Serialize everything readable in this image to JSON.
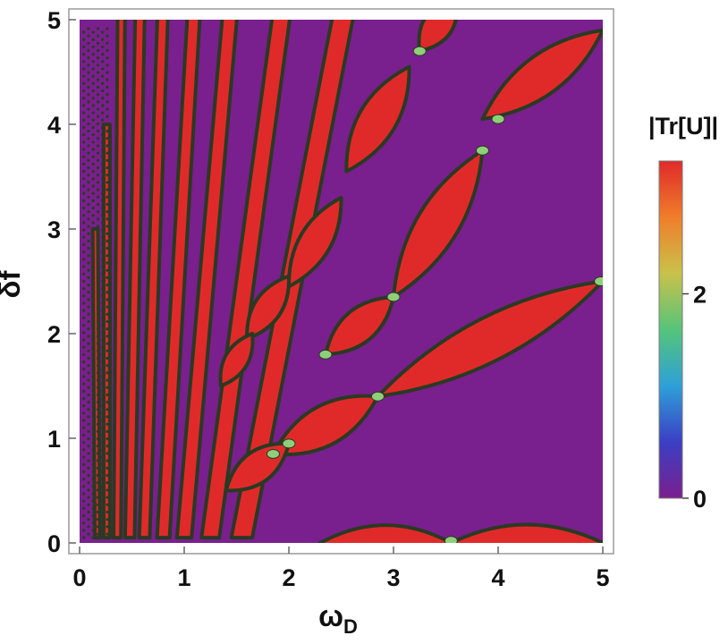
{
  "chart_data": {
    "type": "heatmap",
    "title": "",
    "xlabel": "ω",
    "xlabel_subscript": "D",
    "ylabel": "δf",
    "xlim": [
      0,
      5
    ],
    "ylim": [
      0,
      5
    ],
    "x_ticks": [
      "0",
      "1",
      "2",
      "3",
      "4",
      "5"
    ],
    "y_ticks": [
      "0",
      "1",
      "2",
      "3",
      "4",
      "5"
    ],
    "grid": false,
    "colorbar": {
      "title": "|Tr[U]|",
      "range": [
        0,
        3.3
      ],
      "ticks": [
        "0",
        "2"
      ],
      "tick_values": [
        0,
        2
      ],
      "colors": [
        "#7a1f8e",
        "#3b3fc4",
        "#2ea0d8",
        "#55c47a",
        "#c9c24a",
        "#ef7d2a",
        "#e02a2a"
      ]
    },
    "region_colors": {
      "low": "#7a1f8e",
      "high": "#e02a2a",
      "boundary": "#2a3a22",
      "crossing": "#8fcf7a"
    },
    "red_lobes": [
      {
        "x1": 2.3,
        "x2": 3.55,
        "y_at_x1": 0.0,
        "y_at_x2": 0.0,
        "h": 0.34
      },
      {
        "x1": 3.55,
        "x2": 5.0,
        "y_at_x1": 0.0,
        "y_at_x2": 0.0,
        "h": 0.35
      },
      {
        "x1": 2.85,
        "x2": 5.0,
        "y_at_x1": 1.4,
        "y_at_x2": 2.5,
        "h": 0.42
      },
      {
        "x1": 1.85,
        "x2": 2.85,
        "y_at_x1": 0.85,
        "y_at_x2": 1.4,
        "h": 0.38
      },
      {
        "x1": 1.4,
        "x2": 2.0,
        "y_at_x1": 0.5,
        "y_at_x2": 0.95,
        "h": 0.3
      },
      {
        "x1": 3.0,
        "x2": 3.85,
        "y_at_x1": 2.35,
        "y_at_x2": 3.75,
        "h": 0.4
      },
      {
        "x1": 2.35,
        "x2": 3.0,
        "y_at_x1": 1.8,
        "y_at_x2": 2.35,
        "h": 0.32
      },
      {
        "x1": 3.85,
        "x2": 5.0,
        "y_at_x1": 4.05,
        "y_at_x2": 4.9,
        "h": 0.38
      },
      {
        "x1": 2.55,
        "x2": 3.15,
        "y_at_x1": 3.55,
        "y_at_x2": 4.55,
        "h": 0.36
      },
      {
        "x1": 2.0,
        "x2": 2.5,
        "y_at_x1": 2.45,
        "y_at_x2": 3.3,
        "h": 0.3
      },
      {
        "x1": 3.25,
        "x2": 3.6,
        "y_at_x1": 4.7,
        "y_at_x2": 5.2,
        "h": 0.28
      },
      {
        "x1": 1.6,
        "x2": 2.0,
        "y_at_x1": 1.95,
        "y_at_x2": 2.55,
        "h": 0.26
      },
      {
        "x1": 1.35,
        "x2": 1.65,
        "y_at_x1": 1.5,
        "y_at_x2": 2.0,
        "h": 0.22
      }
    ],
    "red_bands": [
      {
        "x0": 1.55,
        "y0": 0.05,
        "x1": 2.55,
        "y1": 5.2,
        "w": 0.2
      },
      {
        "x0": 1.25,
        "y0": 0.05,
        "x1": 1.95,
        "y1": 5.2,
        "w": 0.17
      },
      {
        "x0": 1.0,
        "y0": 0.05,
        "x1": 1.45,
        "y1": 5.2,
        "w": 0.14
      },
      {
        "x0": 0.8,
        "y0": 0.05,
        "x1": 1.1,
        "y1": 5.2,
        "w": 0.12
      },
      {
        "x0": 0.62,
        "y0": 0.05,
        "x1": 0.8,
        "y1": 5.2,
        "w": 0.1
      },
      {
        "x0": 0.48,
        "y0": 0.05,
        "x1": 0.58,
        "y1": 5.2,
        "w": 0.09
      },
      {
        "x0": 0.36,
        "y0": 0.05,
        "x1": 0.4,
        "y1": 5.2,
        "w": 0.07
      },
      {
        "x0": 0.26,
        "y0": 0.05,
        "x1": 0.26,
        "y1": 4.0,
        "w": 0.06
      },
      {
        "x0": 0.17,
        "y0": 0.05,
        "x1": 0.15,
        "y1": 3.0,
        "w": 0.05
      }
    ],
    "crossings": [
      [
        3.55,
        0.02
      ],
      [
        2.85,
        1.4
      ],
      [
        4.98,
        2.5
      ],
      [
        3.85,
        3.75
      ],
      [
        4.0,
        4.05
      ],
      [
        3.0,
        2.35
      ],
      [
        2.35,
        1.8
      ],
      [
        3.25,
        4.7
      ],
      [
        1.85,
        0.85
      ],
      [
        2.0,
        0.95
      ]
    ]
  }
}
